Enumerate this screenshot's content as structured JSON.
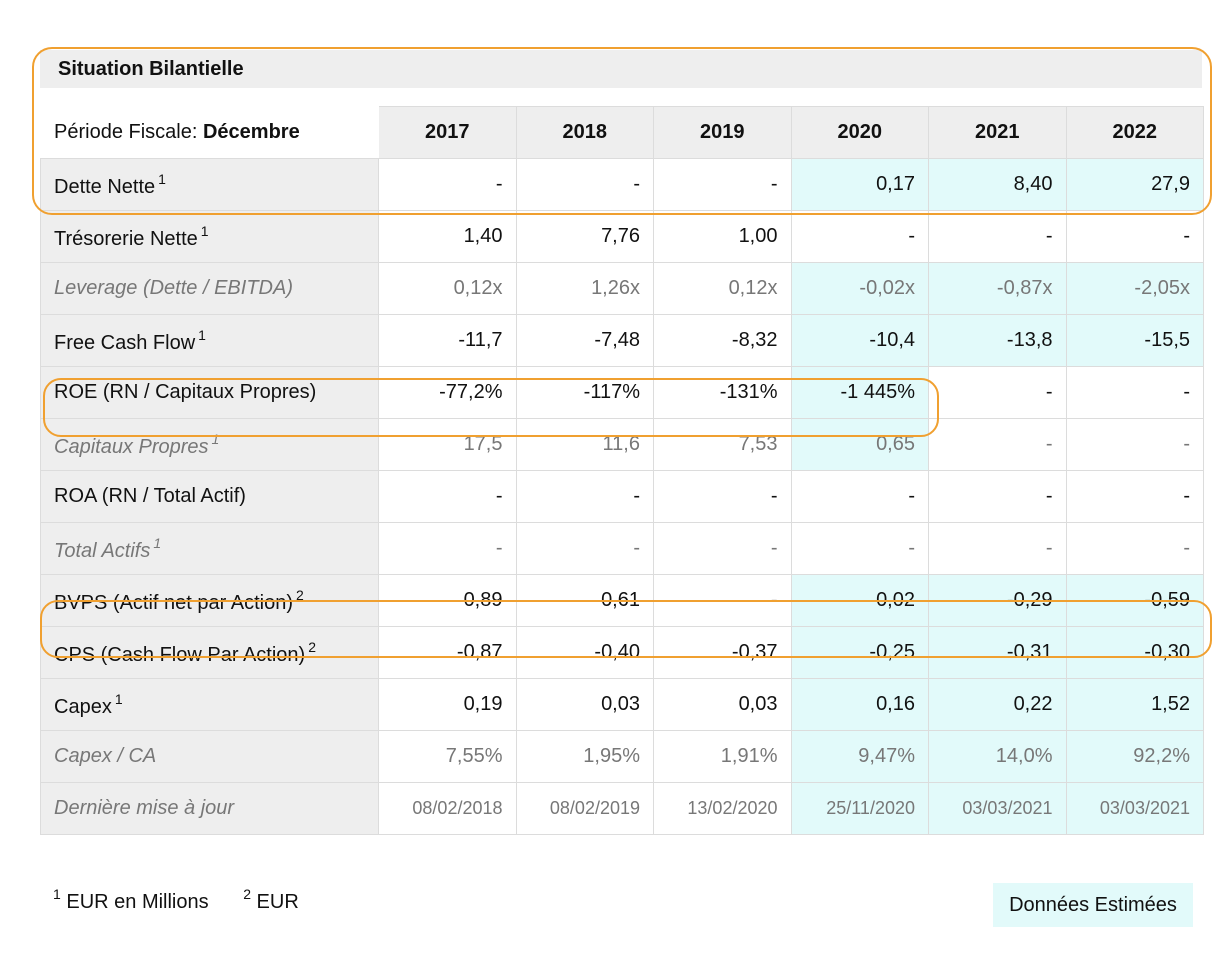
{
  "title": "Situation Bilantielle",
  "period_prefix": "Période Fiscale: ",
  "period_month": "Décembre",
  "years": [
    "2017",
    "2018",
    "2019",
    "2020",
    "2021",
    "2022"
  ],
  "rows": [
    {
      "label": "Dette Nette",
      "sup": "1",
      "values": [
        "-",
        "-",
        "-",
        "0,17",
        "8,40",
        "27,9"
      ]
    },
    {
      "label": "Trésorerie Nette",
      "sup": "1",
      "values": [
        "1,40",
        "7,76",
        "1,00",
        "-",
        "-",
        "-"
      ]
    },
    {
      "label": "Leverage (Dette / EBITDA)",
      "sup": "",
      "values": [
        "0,12x",
        "1,26x",
        "0,12x",
        "-0,02x",
        "-0,87x",
        "-2,05x"
      ]
    },
    {
      "label": "Free Cash Flow",
      "sup": "1",
      "values": [
        "-11,7",
        "-7,48",
        "-8,32",
        "-10,4",
        "-13,8",
        "-15,5"
      ]
    },
    {
      "label": "ROE (RN / Capitaux Propres)",
      "sup": "",
      "values": [
        "-77,2%",
        "-117%",
        "-131%",
        "-1 445%",
        "-",
        "-"
      ]
    },
    {
      "label": "Capitaux Propres",
      "sup": "1",
      "values": [
        "17,5",
        "11,6",
        "7,53",
        "0,65",
        "-",
        "-"
      ]
    },
    {
      "label": "ROA (RN / Total Actif)",
      "sup": "",
      "values": [
        "-",
        "-",
        "-",
        "-",
        "-",
        "-"
      ]
    },
    {
      "label": "Total Actifs",
      "sup": "1",
      "values": [
        "-",
        "-",
        "-",
        "-",
        "-",
        "-"
      ]
    },
    {
      "label": "BVPS (Actif net par Action)",
      "sup": "2",
      "values": [
        "0,89",
        "0,61",
        "-",
        "0,02",
        "-0,29",
        "-0,59"
      ]
    },
    {
      "label": "CPS (Cash Flow Par Action)",
      "sup": "2",
      "values": [
        "-0,87",
        "-0,40",
        "-0,37",
        "-0,25",
        "-0,31",
        "-0,30"
      ]
    },
    {
      "label": "Capex",
      "sup": "1",
      "values": [
        "0,19",
        "0,03",
        "0,03",
        "0,16",
        "0,22",
        "1,52"
      ]
    },
    {
      "label": "Capex / CA",
      "sup": "",
      "values": [
        "7,55%",
        "1,95%",
        "1,91%",
        "9,47%",
        "14,0%",
        "92,2%"
      ]
    },
    {
      "label": "Dernière mise à jour",
      "sup": "",
      "values": [
        "08/02/2018",
        "08/02/2019",
        "13/02/2020",
        "25/11/2020",
        "03/03/2021",
        "03/03/2021"
      ]
    }
  ],
  "footnotes": [
    {
      "sup": "1",
      "text": "EUR en Millions"
    },
    {
      "sup": "2",
      "text": "EUR"
    }
  ],
  "legend_estimated": "Données Estimées",
  "colors": {
    "estimated_bg": "#e2fafa",
    "highlight": "#f0a030",
    "header_bg": "#eeeeee"
  }
}
